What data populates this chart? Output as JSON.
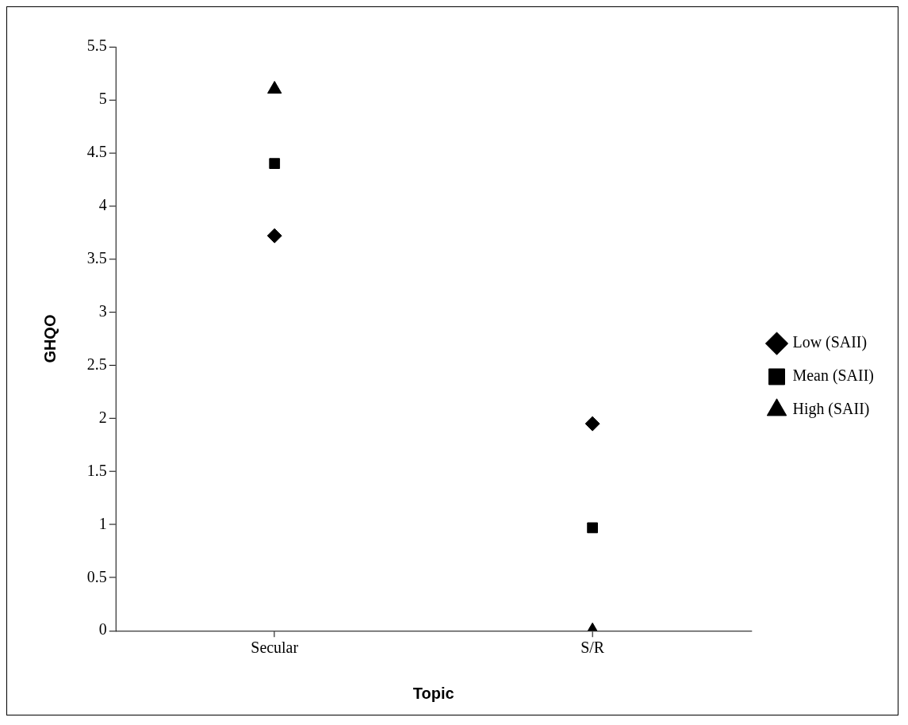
{
  "chart_data": {
    "type": "scatter",
    "xlabel": "Topic",
    "ylabel": "GHQO",
    "categories": [
      "Secular",
      "S/R"
    ],
    "series": [
      {
        "name": "Low (SAII)",
        "color": "#000000",
        "marker": "diamond",
        "values": [
          3.72,
          1.95
        ]
      },
      {
        "name": "Mean (SAII)",
        "color": "#000000",
        "marker": "square",
        "values": [
          4.4,
          0.97
        ]
      },
      {
        "name": "High (SAII)",
        "color": "#000000",
        "marker": "triangle",
        "values": [
          5.1,
          0
        ]
      }
    ],
    "ylim": [
      0,
      5.5
    ],
    "yticks": [
      0,
      0.5,
      1,
      1.5,
      2,
      2.5,
      3,
      3.5,
      4,
      4.5,
      5,
      5.5
    ],
    "grid": false,
    "legend": "right"
  }
}
